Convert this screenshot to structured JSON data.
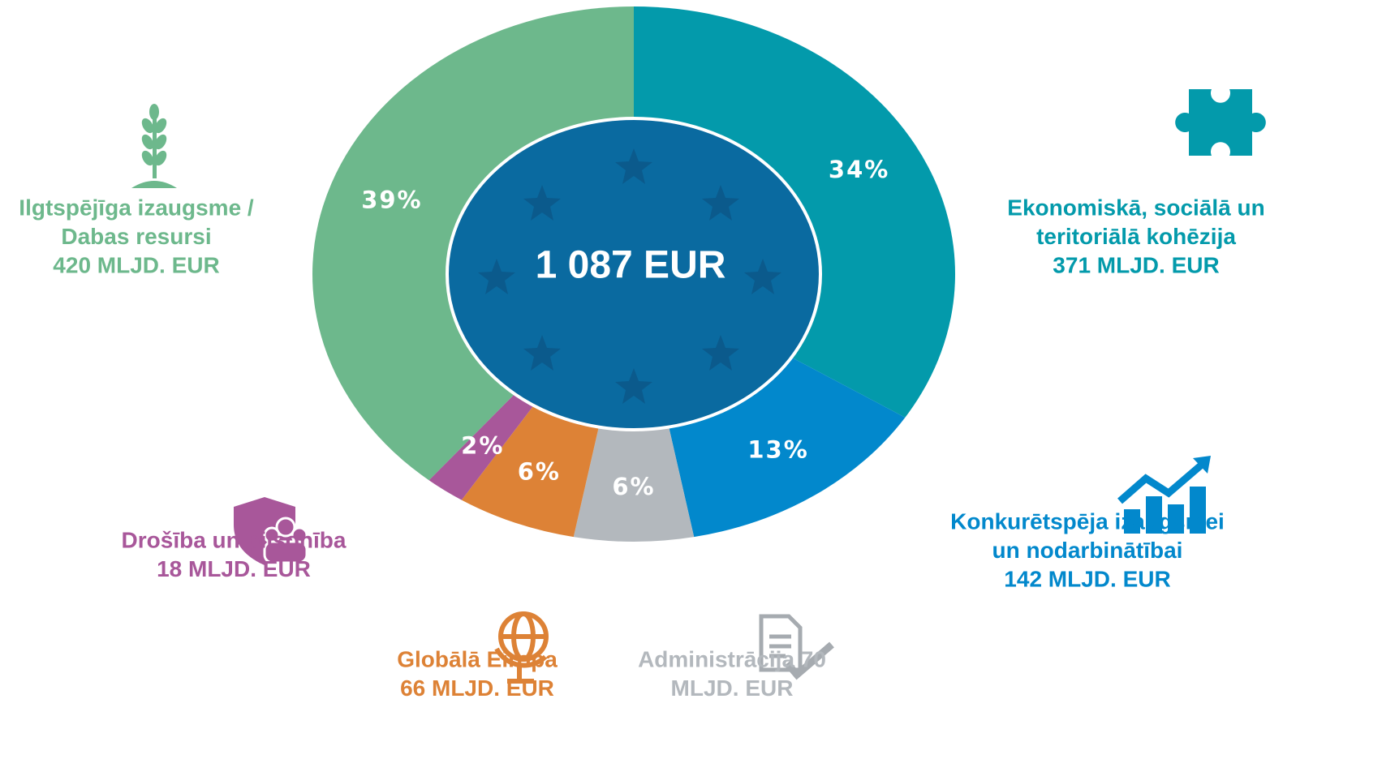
{
  "chart_data": {
    "type": "donut",
    "center_label": "1 087 EUR",
    "labels": [
      [
        "Ekonomiskā, sociālā un",
        "teritoriālā kohēzija",
        "371 MLJD. EUR"
      ],
      [
        "Konkurētspēja izaugsmei",
        "un nodarbinātībai",
        "142 MLJD. EUR"
      ],
      [
        "Administrācija 70",
        "MLJD. EUR"
      ],
      [
        "Globālā Eiropa",
        "66 MLJD. EUR"
      ],
      [
        "Drošība un pilsonība",
        "18 MLJD. EUR"
      ],
      [
        "Ilgtspējīga izaugsme /",
        "Dabas resursi",
        "420 MLJD. EUR"
      ]
    ],
    "values": [
      34,
      13,
      6,
      6,
      2,
      39
    ],
    "value_labels": [
      "34%",
      "13%",
      "6%",
      "6%",
      "2%",
      "39%"
    ],
    "colors": [
      "#039aab",
      "#0288cc",
      "#b3b8bd",
      "#dd8236",
      "#a8579a",
      "#6db88c"
    ]
  }
}
